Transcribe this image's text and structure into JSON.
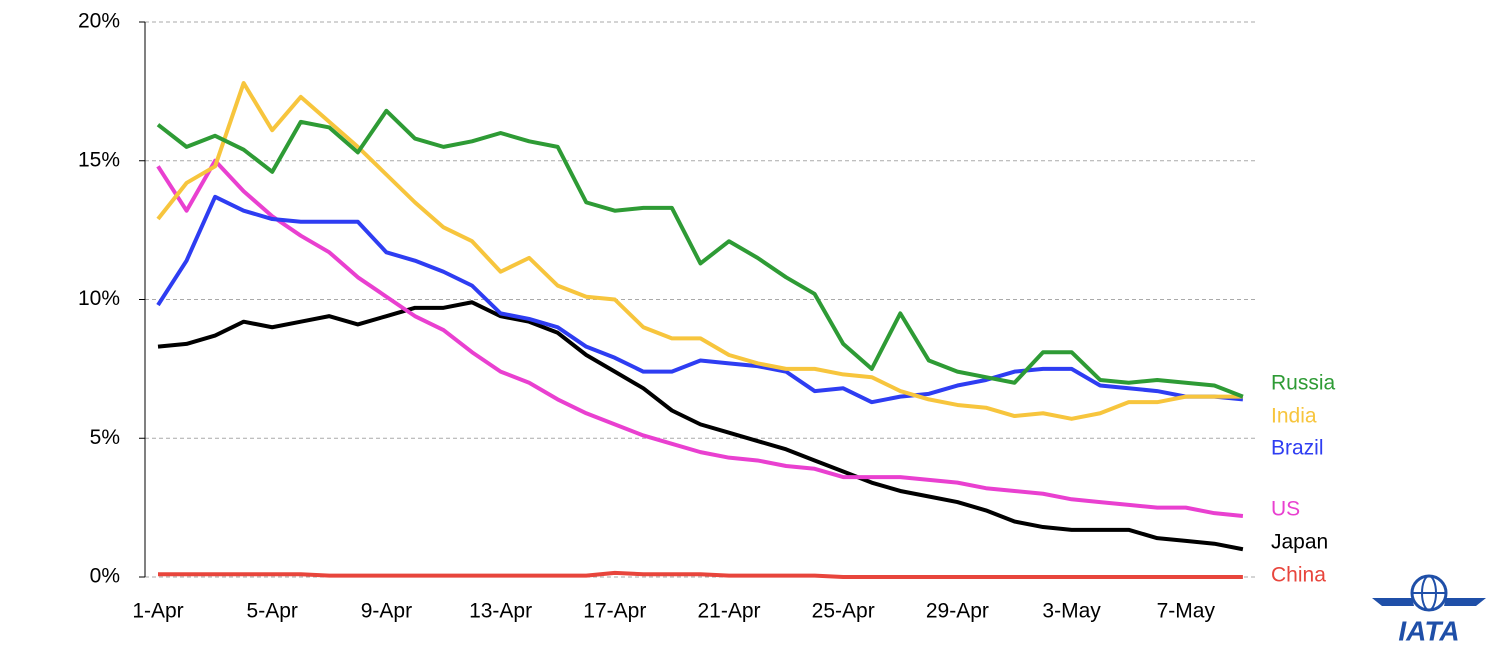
{
  "chart_data": {
    "type": "line",
    "categories": [
      "1-Apr",
      null,
      null,
      null,
      "5-Apr",
      null,
      null,
      null,
      "9-Apr",
      null,
      null,
      null,
      "13-Apr",
      null,
      null,
      null,
      "17-Apr",
      null,
      null,
      null,
      "21-Apr",
      null,
      null,
      null,
      "25-Apr",
      null,
      null,
      null,
      "29-Apr",
      null,
      null,
      null,
      "3-May",
      null,
      null,
      null,
      "7-May",
      null,
      null
    ],
    "series": [
      {
        "name": "Russia",
        "color": "#2e9b35",
        "values": [
          16.3,
          15.5,
          15.9,
          15.4,
          14.6,
          16.4,
          16.2,
          15.3,
          16.8,
          15.8,
          15.5,
          15.7,
          16.0,
          15.7,
          15.5,
          13.5,
          13.2,
          13.3,
          13.3,
          11.3,
          12.1,
          11.5,
          10.8,
          10.2,
          8.4,
          7.5,
          9.5,
          7.8,
          7.4,
          7.2,
          7.0,
          8.1,
          8.1,
          7.1,
          7.0,
          7.1,
          7.0,
          6.9,
          6.5
        ]
      },
      {
        "name": "India",
        "color": "#f7c53d",
        "values": [
          12.9,
          14.2,
          14.8,
          17.8,
          16.1,
          17.3,
          16.4,
          15.5,
          14.5,
          13.5,
          12.6,
          12.1,
          11.0,
          11.5,
          10.5,
          10.1,
          10.0,
          9.0,
          8.6,
          8.6,
          8.0,
          7.7,
          7.5,
          7.5,
          7.3,
          7.2,
          6.7,
          6.4,
          6.2,
          6.1,
          5.8,
          5.9,
          5.7,
          5.9,
          6.3,
          6.3,
          6.5,
          6.5,
          6.5
        ]
      },
      {
        "name": "Brazil",
        "color": "#2e3df2",
        "values": [
          9.8,
          11.4,
          13.7,
          13.2,
          12.9,
          12.8,
          12.8,
          12.8,
          11.7,
          11.4,
          11.0,
          10.5,
          9.5,
          9.3,
          9.0,
          8.3,
          7.9,
          7.4,
          7.4,
          7.8,
          7.7,
          7.6,
          7.4,
          6.7,
          6.8,
          6.3,
          6.5,
          6.6,
          6.9,
          7.1,
          7.4,
          7.5,
          7.5,
          6.9,
          6.8,
          6.7,
          6.5,
          6.5,
          6.4
        ]
      },
      {
        "name": "US",
        "color": "#e940d0",
        "values": [
          14.8,
          13.2,
          15.0,
          13.9,
          13.0,
          12.3,
          11.7,
          10.8,
          10.1,
          9.4,
          8.9,
          8.1,
          7.4,
          7.0,
          6.4,
          5.9,
          5.5,
          5.1,
          4.8,
          4.5,
          4.3,
          4.2,
          4.0,
          3.9,
          3.6,
          3.6,
          3.6,
          3.5,
          3.4,
          3.2,
          3.1,
          3.0,
          2.8,
          2.7,
          2.6,
          2.5,
          2.5,
          2.3,
          2.2
        ]
      },
      {
        "name": "Japan",
        "color": "#000000",
        "values": [
          8.3,
          8.4,
          8.7,
          9.2,
          9.0,
          9.2,
          9.4,
          9.1,
          9.4,
          9.7,
          9.7,
          9.9,
          9.4,
          9.2,
          8.8,
          8.0,
          7.4,
          6.8,
          6.0,
          5.5,
          5.2,
          4.9,
          4.6,
          4.2,
          3.8,
          3.4,
          3.1,
          2.9,
          2.7,
          2.4,
          2.0,
          1.8,
          1.7,
          1.7,
          1.7,
          1.4,
          1.3,
          1.2,
          1.0
        ]
      },
      {
        "name": "China",
        "color": "#e8453c",
        "values": [
          0.1,
          0.1,
          0.1,
          0.1,
          0.1,
          0.1,
          0.05,
          0.05,
          0.05,
          0.05,
          0.05,
          0.05,
          0.05,
          0.05,
          0.05,
          0.05,
          0.15,
          0.1,
          0.1,
          0.1,
          0.05,
          0.05,
          0.05,
          0.05,
          0,
          0,
          0,
          0,
          0,
          0,
          0,
          0,
          0,
          0,
          0,
          0,
          0,
          0,
          0
        ]
      }
    ],
    "ylim": [
      0,
      20
    ],
    "yticks": [
      {
        "value": 0,
        "label": "0%"
      },
      {
        "value": 5,
        "label": "5%"
      },
      {
        "value": 10,
        "label": "10%"
      },
      {
        "value": 15,
        "label": "15%"
      },
      {
        "value": 20,
        "label": "20%"
      }
    ],
    "grid": true
  },
  "logo": "IATA"
}
